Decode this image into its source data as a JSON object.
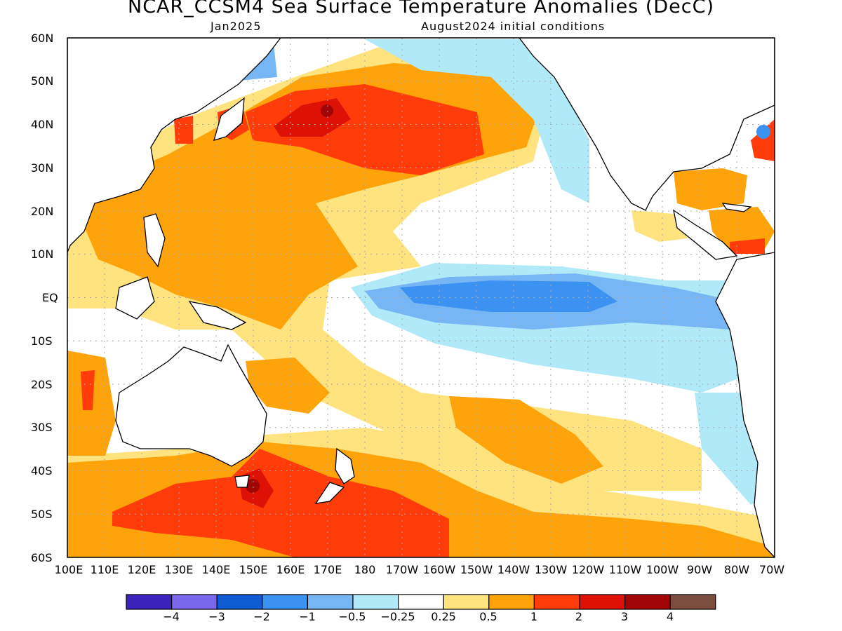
{
  "header": {
    "title": "NCAR_CCSM4 Sea Surface Temperature Anomalies (DecC)",
    "subtitle_left": "Jan2025",
    "subtitle_right": "August2024 initial conditions"
  },
  "axes": {
    "lat_labels": [
      "60N",
      "50N",
      "40N",
      "30N",
      "20N",
      "10N",
      "EQ",
      "10S",
      "20S",
      "30S",
      "40S",
      "50S",
      "60S"
    ],
    "lon_labels": [
      "100E",
      "110E",
      "120E",
      "130E",
      "140E",
      "150E",
      "160E",
      "170E",
      "180",
      "170W",
      "160W",
      "150W",
      "140W",
      "130W",
      "120W",
      "110W",
      "100W",
      "90W",
      "80W",
      "70W"
    ]
  },
  "legend": {
    "colors": [
      "#3b22b8",
      "#7a67ec",
      "#0e5ccf",
      "#3c92f0",
      "#76b6f4",
      "#b0e9f8",
      "#ffffff",
      "#ffe37e",
      "#ffa30a",
      "#ff3c0a",
      "#de1106",
      "#a10505",
      "#7a4d3f"
    ],
    "labels": [
      "−4",
      "−3",
      "−2",
      "−1",
      "−0.5",
      "−0.25",
      "0.25",
      "0.5",
      "1",
      "2",
      "3",
      "4"
    ]
  },
  "palette": {
    "pos_025": "#ffe37e",
    "pos_05": "#ffa30a",
    "pos_1": "#ff3c0a",
    "pos_2": "#de1106",
    "pos_3": "#a10505",
    "neg_025": "#b0e9f8",
    "neg_05": "#76b6f4",
    "neg_1": "#3c92f0",
    "neg_2": "#0e5ccf"
  }
}
